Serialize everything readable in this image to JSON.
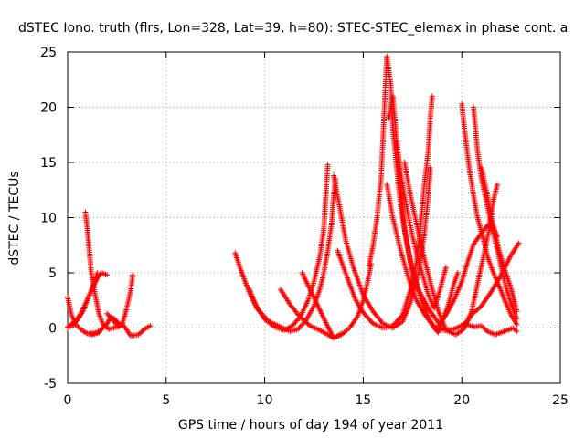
{
  "chart_data": {
    "type": "scatter",
    "title": "dSTEC Iono. truth (flrs, Lon=328, Lat=39, h=80): STEC-STEC_elemax in phase cont. a",
    "xlabel": "GPS time / hours of day 194 of year 2011",
    "ylabel": "dSTEC  / TECUs",
    "xlim": [
      0,
      25
    ],
    "ylim": [
      -5,
      25
    ],
    "xticks": [
      0,
      5,
      10,
      15,
      20,
      25
    ],
    "yticks": [
      -5,
      0,
      5,
      10,
      15,
      20,
      25
    ],
    "grid": true,
    "marker": "+",
    "color": "#ff0000",
    "series": [
      {
        "points": [
          [
            0.0,
            2.8
          ],
          [
            0.2,
            1.2
          ],
          [
            0.4,
            0.3
          ],
          [
            0.6,
            0.0
          ],
          [
            0.8,
            -0.3
          ],
          [
            1.0,
            -0.5
          ],
          [
            1.3,
            -0.6
          ],
          [
            1.6,
            -0.4
          ]
        ]
      },
      {
        "points": [
          [
            0.0,
            0.0
          ],
          [
            0.3,
            0.3
          ],
          [
            0.6,
            1.0
          ],
          [
            0.9,
            2.2
          ],
          [
            1.2,
            3.4
          ],
          [
            1.5,
            4.5
          ],
          [
            1.7,
            5.0
          ],
          [
            2.0,
            4.8
          ]
        ]
      },
      {
        "points": [
          [
            0.9,
            10.5
          ],
          [
            1.0,
            9.0
          ],
          [
            1.1,
            7.0
          ],
          [
            1.2,
            5.0
          ],
          [
            1.4,
            3.0
          ],
          [
            1.6,
            1.2
          ],
          [
            1.8,
            0.3
          ],
          [
            2.1,
            -0.1
          ],
          [
            2.5,
            0.1
          ],
          [
            2.8,
            0.3
          ]
        ]
      },
      {
        "points": [
          [
            0.0,
            0.1
          ],
          [
            0.4,
            0.6
          ],
          [
            0.8,
            1.6
          ],
          [
            1.0,
            2.5
          ],
          [
            1.2,
            3.4
          ],
          [
            1.4,
            4.3
          ],
          [
            1.5,
            5.0
          ]
        ]
      },
      {
        "points": [
          [
            1.1,
            -0.5
          ],
          [
            1.5,
            -0.4
          ],
          [
            1.8,
            0.0
          ],
          [
            2.0,
            0.4
          ],
          [
            2.2,
            1.0
          ],
          [
            2.4,
            0.8
          ],
          [
            2.6,
            0.4
          ],
          [
            2.9,
            0.1
          ],
          [
            3.2,
            -0.7
          ],
          [
            3.6,
            -0.6
          ],
          [
            3.9,
            -0.1
          ],
          [
            4.2,
            0.2
          ]
        ]
      },
      {
        "points": [
          [
            2.0,
            1.3
          ],
          [
            2.4,
            0.5
          ],
          [
            2.6,
            0.1
          ],
          [
            2.8,
            0.5
          ],
          [
            3.0,
            1.8
          ],
          [
            3.2,
            3.4
          ],
          [
            3.3,
            4.8
          ]
        ]
      },
      {
        "points": [
          [
            8.5,
            6.8
          ],
          [
            8.8,
            5.2
          ],
          [
            9.2,
            3.3
          ],
          [
            9.6,
            1.8
          ],
          [
            10.2,
            0.6
          ],
          [
            10.8,
            0.1
          ],
          [
            11.3,
            -0.3
          ],
          [
            11.7,
            -0.1
          ],
          [
            12.1,
            0.7
          ],
          [
            12.5,
            2.0
          ],
          [
            12.8,
            3.5
          ],
          [
            13.0,
            5.0
          ],
          [
            13.2,
            7.0
          ],
          [
            13.4,
            9.5
          ],
          [
            13.5,
            12.0
          ],
          [
            13.6,
            13.5
          ]
        ]
      },
      {
        "points": [
          [
            9.2,
            3.6
          ],
          [
            9.6,
            1.9
          ],
          [
            10.0,
            0.8
          ],
          [
            10.5,
            0.1
          ],
          [
            11.0,
            -0.2
          ],
          [
            11.4,
            0.2
          ],
          [
            11.8,
            1.0
          ],
          [
            12.2,
            2.5
          ],
          [
            12.5,
            4.2
          ],
          [
            12.8,
            6.5
          ],
          [
            13.0,
            9.0
          ],
          [
            13.1,
            12.0
          ],
          [
            13.2,
            14.8
          ]
        ]
      },
      {
        "points": [
          [
            10.8,
            3.5
          ],
          [
            11.3,
            2.1
          ],
          [
            11.8,
            1.0
          ],
          [
            12.3,
            0.2
          ],
          [
            12.8,
            -0.2
          ],
          [
            13.2,
            -0.6
          ],
          [
            13.5,
            -0.9
          ],
          [
            13.9,
            -0.6
          ],
          [
            14.3,
            0.0
          ],
          [
            14.7,
            1.0
          ],
          [
            15.0,
            2.5
          ],
          [
            15.2,
            4.0
          ],
          [
            15.4,
            5.8
          ]
        ]
      },
      {
        "points": [
          [
            11.9,
            5.0
          ],
          [
            12.3,
            3.5
          ],
          [
            12.7,
            2.0
          ],
          [
            13.1,
            0.5
          ],
          [
            13.5,
            -0.9
          ],
          [
            13.9,
            -0.5
          ]
        ]
      },
      {
        "points": [
          [
            13.7,
            7.0
          ],
          [
            14.1,
            5.0
          ],
          [
            14.6,
            2.6
          ],
          [
            15.0,
            1.4
          ],
          [
            15.5,
            0.4
          ],
          [
            16.0,
            0.0
          ],
          [
            16.5,
            0.2
          ],
          [
            17.0,
            1.2
          ],
          [
            17.4,
            3.5
          ],
          [
            17.7,
            6.0
          ],
          [
            17.9,
            9.0
          ],
          [
            18.1,
            13.0
          ],
          [
            18.3,
            16.0
          ],
          [
            18.4,
            19.0
          ],
          [
            18.5,
            21.0
          ]
        ]
      },
      {
        "points": [
          [
            13.5,
            13.8
          ],
          [
            13.8,
            11.0
          ],
          [
            14.1,
            8.0
          ],
          [
            14.5,
            5.5
          ],
          [
            15.0,
            3.0
          ],
          [
            15.5,
            1.5
          ],
          [
            16.0,
            0.4
          ],
          [
            16.5,
            0.0
          ],
          [
            17.0,
            0.6
          ],
          [
            17.4,
            2.3
          ],
          [
            17.8,
            5.0
          ],
          [
            18.1,
            8.5
          ],
          [
            18.3,
            12.0
          ],
          [
            18.4,
            14.5
          ]
        ]
      },
      {
        "points": [
          [
            15.3,
            5.7
          ],
          [
            15.5,
            7.5
          ],
          [
            15.7,
            10.0
          ],
          [
            15.9,
            13.5
          ],
          [
            16.0,
            17.0
          ],
          [
            16.1,
            21.0
          ],
          [
            16.2,
            24.6
          ],
          [
            16.4,
            22.0
          ],
          [
            16.5,
            18.0
          ],
          [
            16.7,
            14.5
          ],
          [
            16.9,
            11.0
          ],
          [
            17.2,
            7.8
          ],
          [
            17.5,
            5.0
          ],
          [
            17.9,
            2.8
          ],
          [
            18.3,
            1.0
          ],
          [
            18.6,
            0.0
          ],
          [
            18.8,
            -0.4
          ],
          [
            19.0,
            0.6
          ],
          [
            19.3,
            2.0
          ],
          [
            19.6,
            4.0
          ],
          [
            19.8,
            5.0
          ]
        ]
      },
      {
        "points": [
          [
            16.2,
            13.0
          ],
          [
            16.5,
            10.0
          ],
          [
            16.9,
            7.0
          ],
          [
            17.3,
            4.5
          ],
          [
            17.7,
            2.5
          ],
          [
            18.2,
            1.0
          ],
          [
            18.6,
            0.1
          ],
          [
            19.1,
            -0.2
          ],
          [
            19.6,
            -0.1
          ],
          [
            20.2,
            0.4
          ],
          [
            20.5,
            1.2
          ],
          [
            21.0,
            2.0
          ],
          [
            21.5,
            3.3
          ],
          [
            22.0,
            4.8
          ],
          [
            22.5,
            6.6
          ],
          [
            22.9,
            7.7
          ]
        ]
      },
      {
        "points": [
          [
            16.3,
            19.0
          ],
          [
            16.5,
            21.0
          ],
          [
            16.7,
            17.0
          ],
          [
            16.9,
            12.5
          ],
          [
            17.1,
            9.0
          ],
          [
            17.4,
            6.0
          ],
          [
            17.8,
            3.5
          ],
          [
            18.3,
            1.8
          ],
          [
            18.8,
            0.5
          ]
        ]
      },
      {
        "points": [
          [
            16.7,
            16.8
          ],
          [
            16.9,
            14.0
          ],
          [
            17.2,
            11.0
          ],
          [
            17.5,
            8.3
          ],
          [
            17.9,
            5.5
          ],
          [
            18.3,
            3.0
          ],
          [
            18.6,
            1.8
          ],
          [
            18.9,
            3.5
          ],
          [
            19.2,
            5.5
          ]
        ]
      },
      {
        "points": [
          [
            17.1,
            15.0
          ],
          [
            17.4,
            12.0
          ],
          [
            17.7,
            9.5
          ],
          [
            18.0,
            7.0
          ],
          [
            18.4,
            4.2
          ],
          [
            18.8,
            1.6
          ],
          [
            19.2,
            -0.2
          ],
          [
            19.7,
            -0.6
          ],
          [
            20.1,
            -0.1
          ],
          [
            20.5,
            1.5
          ],
          [
            20.8,
            4.0
          ],
          [
            21.1,
            6.5
          ],
          [
            21.4,
            9.0
          ],
          [
            21.6,
            11.5
          ],
          [
            21.8,
            13.0
          ]
        ]
      },
      {
        "points": [
          [
            18.8,
            0.2
          ],
          [
            19.2,
            1.2
          ],
          [
            19.6,
            2.5
          ],
          [
            20.0,
            4.2
          ],
          [
            20.3,
            6.0
          ],
          [
            20.6,
            7.6
          ],
          [
            21.0,
            8.6
          ],
          [
            21.3,
            9.3
          ],
          [
            21.6,
            9.1
          ],
          [
            21.8,
            8.3
          ]
        ]
      },
      {
        "points": [
          [
            20.0,
            20.3
          ],
          [
            20.2,
            17.0
          ],
          [
            20.4,
            14.2
          ],
          [
            20.6,
            12.0
          ],
          [
            20.8,
            10.0
          ],
          [
            21.1,
            8.0
          ],
          [
            21.3,
            6.5
          ],
          [
            21.6,
            5.0
          ],
          [
            21.9,
            3.8
          ],
          [
            22.2,
            2.4
          ],
          [
            22.5,
            1.2
          ],
          [
            22.8,
            0.3
          ]
        ]
      },
      {
        "points": [
          [
            20.6,
            20.0
          ],
          [
            20.8,
            16.0
          ],
          [
            21.0,
            13.5
          ],
          [
            21.3,
            11.0
          ],
          [
            21.6,
            8.6
          ],
          [
            21.9,
            6.3
          ],
          [
            22.2,
            4.0
          ],
          [
            22.5,
            2.2
          ],
          [
            22.8,
            0.8
          ]
        ]
      },
      {
        "points": [
          [
            21.0,
            14.5
          ],
          [
            21.3,
            12.0
          ],
          [
            21.6,
            9.3
          ],
          [
            21.9,
            7.0
          ],
          [
            22.2,
            5.2
          ],
          [
            22.5,
            3.6
          ],
          [
            22.8,
            1.5
          ]
        ]
      },
      {
        "points": [
          [
            20.1,
            0.4
          ],
          [
            20.6,
            0.1
          ],
          [
            21.0,
            0.2
          ],
          [
            21.3,
            -0.3
          ],
          [
            21.7,
            -0.6
          ],
          [
            22.0,
            -0.4
          ],
          [
            22.3,
            -0.2
          ],
          [
            22.6,
            0.0
          ],
          [
            22.8,
            -0.3
          ]
        ]
      }
    ]
  }
}
